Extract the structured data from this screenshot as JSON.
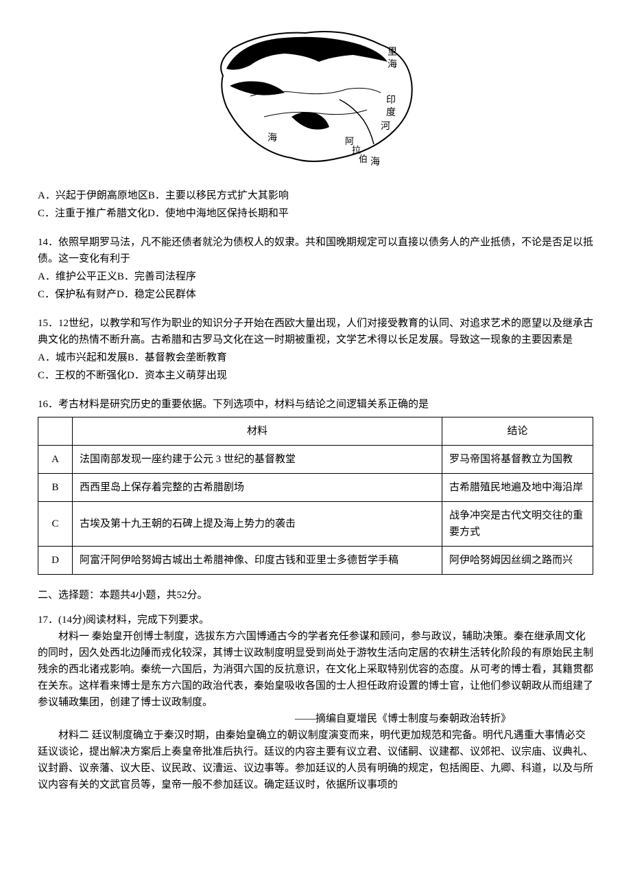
{
  "map": {
    "labels": {
      "li": "里",
      "hai_top": "海",
      "yin": "印",
      "du": "度",
      "he": "河",
      "alabao": "阿拉伯",
      "hai_bottom": "海",
      "hai_left": "海"
    }
  },
  "q13": {
    "optA": "A．兴起于伊朗高原地区",
    "optB": "B．主要以移民方式扩大其影响",
    "optC": "C．注重于推广希腊文化",
    "optD": "D．使地中海地区保持长期和平"
  },
  "q14": {
    "stem": "14．依照早期罗马法，凡不能还债者就沦为债权人的奴隶。共和国晚期规定可以直接以债务人的产业抵债，不论是否足以抵债。这一变化有利于",
    "optA": "A．维护公平正义",
    "optB": "B．完善司法程序",
    "optC": "C．保护私有财产",
    "optD": "D．稳定公民群体"
  },
  "q15": {
    "stem": "15．12世纪，以教学和写作为职业的知识分子开始在西欧大量出现，人们对接受教育的认同、对追求艺术的愿望以及继承古典文化的热情不断升高。古希腊和古罗马文化在这一时期被重视，文学艺术得以长足发展。导致这一现象的主要因素是",
    "optA": "A．城市兴起和发展",
    "optB": "B．基督教会垄断教育",
    "optC": "C．王权的不断强化",
    "optD": "D．资本主义萌芽出现"
  },
  "q16": {
    "stem": "16．考古材料是研究历史的重要依据。下列选项中，材料与结论之间逻辑关系正确的是",
    "header_material": "材料",
    "header_conclusion": "结论",
    "rows": [
      {
        "label": "A",
        "material": "法国南部发现一座约建于公元 3 世纪的基督教堂",
        "conclusion": "罗马帝国将基督教立为国教"
      },
      {
        "label": "B",
        "material": "西西里岛上保存着完整的古希腊剧场",
        "conclusion": "古希腊殖民地遍及地中海沿岸"
      },
      {
        "label": "C",
        "material": "古埃及第十九王朝的石碑上提及海上势力的袭击",
        "conclusion": "战争冲突是古代文明交往的重要方式"
      },
      {
        "label": "D",
        "material": "阿富汗阿伊哈努姆古城出土希腊神像、印度古钱和亚里士多德哲学手稿",
        "conclusion": "阿伊哈努姆因丝绸之路而兴"
      }
    ]
  },
  "section2_header": "二、选择题：本题共4小题，共52分。",
  "q17": {
    "title": "17．(14分)阅读材料，完成下列要求。",
    "material1": "材料一 秦始皇开创博士制度，选拔东方六国博通古今的学者充任参谋和顾问，参与政议，辅助决策。秦在继承周文化的同时，因久处西北边陲而戎化较深，其博士议政制度明显受到尚处于游牧生活向定居的农耕生活转化阶段的有原始民主制残余的西北诸戎影响。秦统一六国后，为消弭六国的反抗意识，在文化上采取特别优容的态度。从可考的博士看，其籍贯都在关东。这样看来博士是东方六国的政治代表，秦始皇吸收各国的士人担任政府设置的博士官，让他们参议朝政从而组建了参议辅政集团，创建了博士议政制度。",
    "citation1": "——摘编自夏增民《博士制度与秦朝政治转折》",
    "material2": "材料二 廷议制度确立于秦汉时期，由秦始皇确立的朝议制度演变而来，明代更加规范和完备。明代凡遇重大事情必交廷议谈论，提出解决方案后上奏皇帝批准后执行。廷议的内容主要有议立君、议储嗣、议建都、议郊祀、议宗庙、议典礼、议封爵、议亲藩、议大臣、议民政、议漕运、议边事等。参加廷议的人员有明确的规定，包括阁臣、九卿、科道，以及与所议内容有关的文武官员等，皇帝一般不参加廷议。确定廷议时，依据所议事项的"
  }
}
